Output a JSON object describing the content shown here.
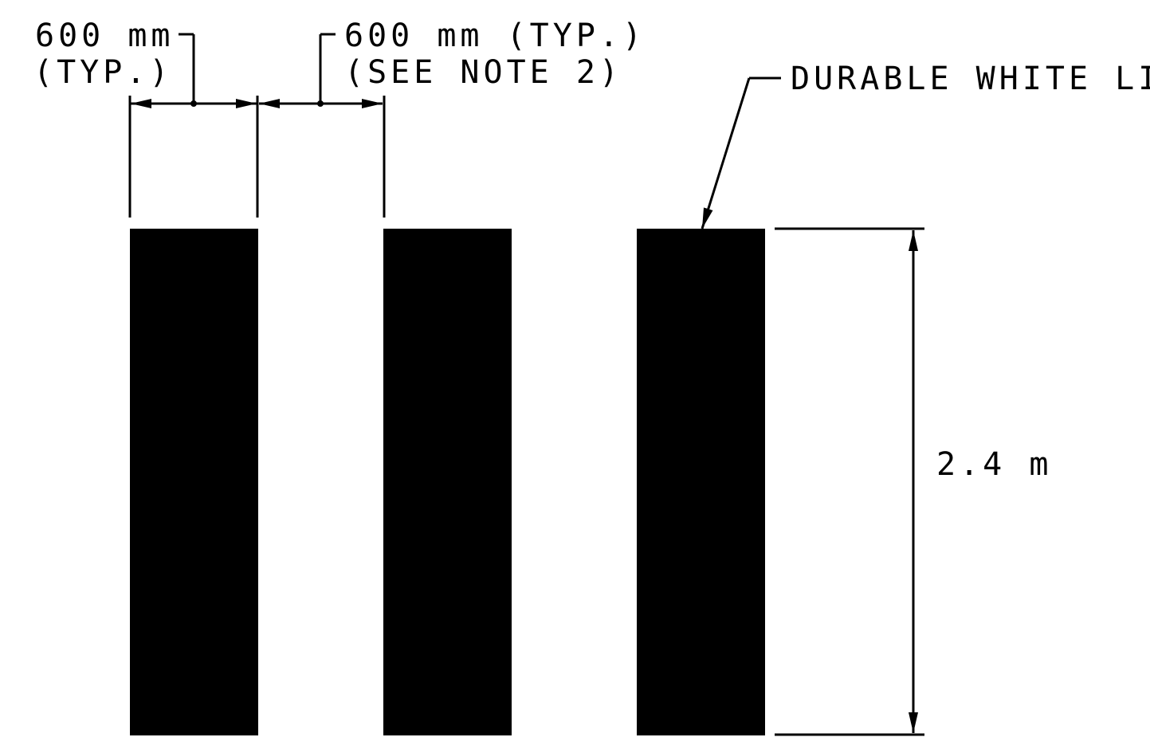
{
  "drawing": {
    "stroke_color": "#000000",
    "bar_color": "#000000",
    "background_color": "#ffffff",
    "bars": [
      {
        "label": "marking-bar-1"
      },
      {
        "label": "marking-bar-2"
      },
      {
        "label": "marking-bar-3"
      }
    ]
  },
  "dimensions": {
    "bar_width": {
      "line1": "600 mm",
      "line2": "(TYP.)"
    },
    "gap_width": {
      "line1": "600 mm (TYP.)",
      "line2": "(SEE NOTE 2)"
    },
    "bar_length": "2.4 m"
  },
  "callout": {
    "label": "DURABLE WHITE LINE"
  }
}
